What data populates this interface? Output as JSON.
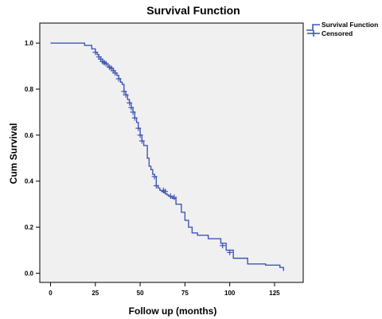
{
  "chart_data": {
    "type": "line",
    "title": "Survival Function",
    "xlabel": "Follow up (months)",
    "ylabel": "Cum Survival",
    "xlim": [
      -6,
      141
    ],
    "ylim": [
      -0.04,
      1.087
    ],
    "x_ticks": [
      0,
      25,
      50,
      75,
      100,
      125
    ],
    "x_tick_labels": [
      "0",
      "25",
      "50",
      "75",
      "100",
      "125"
    ],
    "y_ticks": [
      0.0,
      0.2,
      0.4,
      0.6,
      0.8,
      1.0
    ],
    "y_tick_labels": [
      "0.0",
      "0.2",
      "0.4",
      "0.6",
      "0.8",
      "1.0"
    ],
    "grid": false,
    "legend_position": "top-right outside plot",
    "series": [
      {
        "name": "Survival Function",
        "step": true,
        "x": [
          0,
          19,
          23,
          25,
          26,
          27,
          28,
          29,
          30,
          31,
          32,
          33,
          34,
          35,
          36,
          37,
          38,
          39,
          40,
          41,
          42,
          43,
          44,
          45,
          46,
          47,
          48,
          49,
          50,
          51,
          52,
          54,
          55,
          56,
          57,
          58,
          59,
          60,
          61,
          62,
          63,
          64,
          65,
          66,
          67,
          68,
          70,
          72,
          73,
          75,
          77,
          79,
          82,
          88,
          95,
          98,
          102,
          110,
          120,
          128,
          130
        ],
        "y": [
          1.0,
          0.99,
          0.975,
          0.96,
          0.95,
          0.94,
          0.93,
          0.92,
          0.915,
          0.91,
          0.9,
          0.895,
          0.89,
          0.88,
          0.87,
          0.86,
          0.845,
          0.83,
          0.82,
          0.79,
          0.775,
          0.755,
          0.74,
          0.72,
          0.7,
          0.675,
          0.655,
          0.63,
          0.6,
          0.575,
          0.555,
          0.5,
          0.465,
          0.45,
          0.43,
          0.42,
          0.38,
          0.37,
          0.36,
          0.355,
          0.35,
          0.345,
          0.34,
          0.335,
          0.33,
          0.325,
          0.3,
          0.3,
          0.265,
          0.23,
          0.2,
          0.175,
          0.165,
          0.15,
          0.13,
          0.1,
          0.065,
          0.04,
          0.035,
          0.025,
          0.01
        ]
      },
      {
        "name": "Censored",
        "marker": "+",
        "x": [
          25,
          27,
          28,
          29,
          30,
          31,
          33,
          34,
          35,
          36,
          38,
          41,
          42,
          44,
          45,
          46,
          47,
          49,
          50,
          51,
          58,
          59,
          63,
          64,
          67,
          69,
          96,
          100
        ],
        "y": [
          0.96,
          0.94,
          0.93,
          0.92,
          0.915,
          0.91,
          0.895,
          0.89,
          0.88,
          0.87,
          0.845,
          0.79,
          0.775,
          0.74,
          0.72,
          0.7,
          0.675,
          0.63,
          0.6,
          0.575,
          0.42,
          0.38,
          0.36,
          0.355,
          0.335,
          0.33,
          0.12,
          0.09
        ]
      }
    ]
  },
  "legend": {
    "items": [
      {
        "label": "Survival Function",
        "icon": "step-line-icon"
      },
      {
        "label": "Censored",
        "icon": "plus-marker-icon"
      }
    ]
  },
  "colors": {
    "line": "#3f56b5",
    "plot_bg": "#f0f0f0",
    "axis": "#000000"
  }
}
